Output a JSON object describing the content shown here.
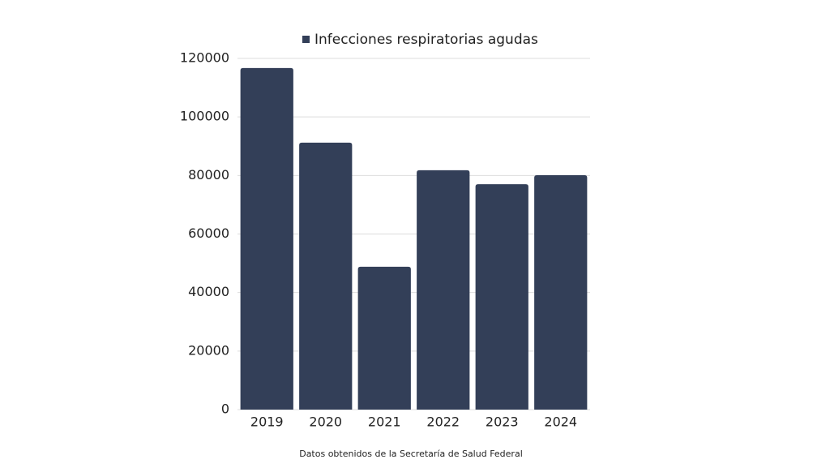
{
  "chart_data": {
    "type": "bar",
    "categories": [
      "2019",
      "2020",
      "2021",
      "2022",
      "2023",
      "2024"
    ],
    "series": [
      {
        "name": "Infecciones respiratorias agudas",
        "color": "#333f58",
        "values": [
          116700,
          91200,
          48800,
          81800,
          77000,
          80100
        ]
      }
    ],
    "ylim": [
      0,
      120000
    ],
    "yticks": [
      0,
      20000,
      40000,
      60000,
      80000,
      100000,
      120000
    ],
    "grid": true,
    "legend": "top",
    "caption": "Datos obtenidos de la Secretaría de Salud Federal"
  }
}
